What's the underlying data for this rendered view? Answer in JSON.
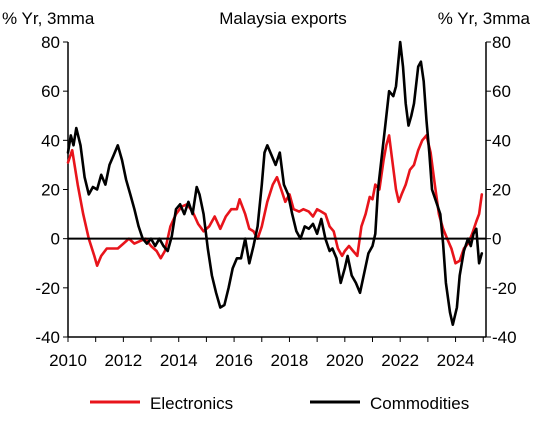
{
  "chart_data": {
    "type": "line",
    "title": "Malaysia exports",
    "ylabel_left": "% Yr, 3mma",
    "ylabel_right": "% Yr, 3mma",
    "ylim": [
      -40,
      80
    ],
    "xlim": [
      2010,
      2025.1
    ],
    "y_ticks": [
      -40,
      -20,
      0,
      20,
      40,
      60,
      80
    ],
    "x_ticks": [
      2010,
      2012,
      2014,
      2016,
      2018,
      2020,
      2022,
      2024
    ],
    "zero_line": true,
    "grid": false,
    "legend_position": "bottom",
    "series": [
      {
        "name": "Electronics",
        "color": "#e8141b",
        "points": [
          [
            2010.0,
            31
          ],
          [
            2010.15,
            36
          ],
          [
            2010.35,
            22
          ],
          [
            2010.55,
            10
          ],
          [
            2010.75,
            0
          ],
          [
            2010.95,
            -7
          ],
          [
            2011.05,
            -11
          ],
          [
            2011.2,
            -7
          ],
          [
            2011.4,
            -4
          ],
          [
            2011.6,
            -4
          ],
          [
            2011.8,
            -4
          ],
          [
            2012.0,
            -2
          ],
          [
            2012.2,
            0
          ],
          [
            2012.4,
            -2
          ],
          [
            2012.6,
            -1
          ],
          [
            2012.8,
            0
          ],
          [
            2013.0,
            -3
          ],
          [
            2013.2,
            -5
          ],
          [
            2013.35,
            -8
          ],
          [
            2013.5,
            -5
          ],
          [
            2013.7,
            5
          ],
          [
            2013.9,
            10
          ],
          [
            2014.1,
            13
          ],
          [
            2014.3,
            14
          ],
          [
            2014.5,
            11
          ],
          [
            2014.7,
            6
          ],
          [
            2014.9,
            3
          ],
          [
            2015.1,
            5
          ],
          [
            2015.3,
            9
          ],
          [
            2015.5,
            4
          ],
          [
            2015.7,
            9
          ],
          [
            2015.9,
            12
          ],
          [
            2016.1,
            12
          ],
          [
            2016.2,
            16
          ],
          [
            2016.4,
            10
          ],
          [
            2016.55,
            4
          ],
          [
            2016.7,
            3
          ],
          [
            2016.85,
            0
          ],
          [
            2017.0,
            5
          ],
          [
            2017.2,
            15
          ],
          [
            2017.4,
            22
          ],
          [
            2017.55,
            25
          ],
          [
            2017.7,
            20
          ],
          [
            2017.85,
            15
          ],
          [
            2018.0,
            18
          ],
          [
            2018.15,
            12
          ],
          [
            2018.35,
            11
          ],
          [
            2018.5,
            12
          ],
          [
            2018.7,
            11
          ],
          [
            2018.85,
            9
          ],
          [
            2019.0,
            12
          ],
          [
            2019.15,
            11
          ],
          [
            2019.3,
            10
          ],
          [
            2019.45,
            5
          ],
          [
            2019.6,
            3
          ],
          [
            2019.75,
            -4
          ],
          [
            2019.9,
            -7
          ],
          [
            2020.0,
            -5
          ],
          [
            2020.15,
            -3
          ],
          [
            2020.3,
            -5
          ],
          [
            2020.45,
            -7
          ],
          [
            2020.6,
            5
          ],
          [
            2020.75,
            10
          ],
          [
            2020.9,
            17
          ],
          [
            2021.0,
            16
          ],
          [
            2021.1,
            22
          ],
          [
            2021.25,
            20
          ],
          [
            2021.4,
            32
          ],
          [
            2021.5,
            38
          ],
          [
            2021.6,
            42
          ],
          [
            2021.7,
            33
          ],
          [
            2021.85,
            20
          ],
          [
            2021.95,
            15
          ],
          [
            2022.05,
            18
          ],
          [
            2022.2,
            22
          ],
          [
            2022.35,
            28
          ],
          [
            2022.5,
            30
          ],
          [
            2022.65,
            36
          ],
          [
            2022.8,
            40
          ],
          [
            2022.95,
            42
          ],
          [
            2023.1,
            35
          ],
          [
            2023.25,
            22
          ],
          [
            2023.4,
            10
          ],
          [
            2023.55,
            4
          ],
          [
            2023.7,
            0
          ],
          [
            2023.85,
            -4
          ],
          [
            2024.0,
            -10
          ],
          [
            2024.15,
            -9
          ],
          [
            2024.3,
            -4
          ],
          [
            2024.45,
            -2
          ],
          [
            2024.6,
            2
          ],
          [
            2024.75,
            7
          ],
          [
            2024.85,
            10
          ],
          [
            2024.95,
            18
          ]
        ]
      },
      {
        "name": "Commodities",
        "color": "#000000",
        "points": [
          [
            2010.0,
            35
          ],
          [
            2010.1,
            42
          ],
          [
            2010.2,
            38
          ],
          [
            2010.3,
            45
          ],
          [
            2010.45,
            38
          ],
          [
            2010.6,
            25
          ],
          [
            2010.75,
            18
          ],
          [
            2010.9,
            21
          ],
          [
            2011.05,
            20
          ],
          [
            2011.2,
            26
          ],
          [
            2011.35,
            22
          ],
          [
            2011.5,
            30
          ],
          [
            2011.65,
            34
          ],
          [
            2011.8,
            38
          ],
          [
            2011.95,
            32
          ],
          [
            2012.1,
            24
          ],
          [
            2012.25,
            18
          ],
          [
            2012.4,
            12
          ],
          [
            2012.55,
            5
          ],
          [
            2012.7,
            0
          ],
          [
            2012.85,
            -2
          ],
          [
            2013.0,
            0
          ],
          [
            2013.15,
            -3
          ],
          [
            2013.3,
            0
          ],
          [
            2013.45,
            -3
          ],
          [
            2013.6,
            -5
          ],
          [
            2013.75,
            1
          ],
          [
            2013.9,
            12
          ],
          [
            2014.05,
            14
          ],
          [
            2014.2,
            10
          ],
          [
            2014.35,
            15
          ],
          [
            2014.5,
            10
          ],
          [
            2014.65,
            21
          ],
          [
            2014.75,
            18
          ],
          [
            2014.9,
            10
          ],
          [
            2015.05,
            -4
          ],
          [
            2015.2,
            -15
          ],
          [
            2015.35,
            -22
          ],
          [
            2015.5,
            -28
          ],
          [
            2015.65,
            -27
          ],
          [
            2015.8,
            -20
          ],
          [
            2015.95,
            -12
          ],
          [
            2016.1,
            -8
          ],
          [
            2016.25,
            -8
          ],
          [
            2016.4,
            0
          ],
          [
            2016.55,
            -10
          ],
          [
            2016.7,
            -3
          ],
          [
            2016.85,
            5
          ],
          [
            2017.0,
            22
          ],
          [
            2017.1,
            35
          ],
          [
            2017.2,
            38
          ],
          [
            2017.35,
            34
          ],
          [
            2017.5,
            30
          ],
          [
            2017.65,
            35
          ],
          [
            2017.8,
            22
          ],
          [
            2017.95,
            18
          ],
          [
            2018.1,
            10
          ],
          [
            2018.25,
            3
          ],
          [
            2018.4,
            0
          ],
          [
            2018.55,
            5
          ],
          [
            2018.7,
            4
          ],
          [
            2018.85,
            6
          ],
          [
            2019.0,
            2
          ],
          [
            2019.15,
            8
          ],
          [
            2019.3,
            0
          ],
          [
            2019.45,
            -5
          ],
          [
            2019.55,
            -4
          ],
          [
            2019.7,
            -8
          ],
          [
            2019.85,
            -18
          ],
          [
            2020.0,
            -12
          ],
          [
            2020.1,
            -7
          ],
          [
            2020.25,
            -15
          ],
          [
            2020.4,
            -18
          ],
          [
            2020.55,
            -22
          ],
          [
            2020.7,
            -14
          ],
          [
            2020.85,
            -6
          ],
          [
            2021.0,
            -3
          ],
          [
            2021.1,
            2
          ],
          [
            2021.2,
            20
          ],
          [
            2021.3,
            30
          ],
          [
            2021.45,
            45
          ],
          [
            2021.6,
            60
          ],
          [
            2021.75,
            58
          ],
          [
            2021.85,
            62
          ],
          [
            2022.0,
            80
          ],
          [
            2022.1,
            70
          ],
          [
            2022.2,
            55
          ],
          [
            2022.3,
            46
          ],
          [
            2022.4,
            50
          ],
          [
            2022.5,
            55
          ],
          [
            2022.65,
            70
          ],
          [
            2022.75,
            72
          ],
          [
            2022.85,
            64
          ],
          [
            2022.95,
            48
          ],
          [
            2023.05,
            35
          ],
          [
            2023.15,
            20
          ],
          [
            2023.3,
            15
          ],
          [
            2023.45,
            10
          ],
          [
            2023.55,
            -2
          ],
          [
            2023.65,
            -18
          ],
          [
            2023.8,
            -30
          ],
          [
            2023.9,
            -35
          ],
          [
            2024.05,
            -28
          ],
          [
            2024.15,
            -15
          ],
          [
            2024.3,
            -5
          ],
          [
            2024.45,
            0
          ],
          [
            2024.55,
            -3
          ],
          [
            2024.65,
            2
          ],
          [
            2024.75,
            4
          ],
          [
            2024.85,
            -10
          ],
          [
            2024.95,
            -6
          ]
        ]
      }
    ]
  }
}
